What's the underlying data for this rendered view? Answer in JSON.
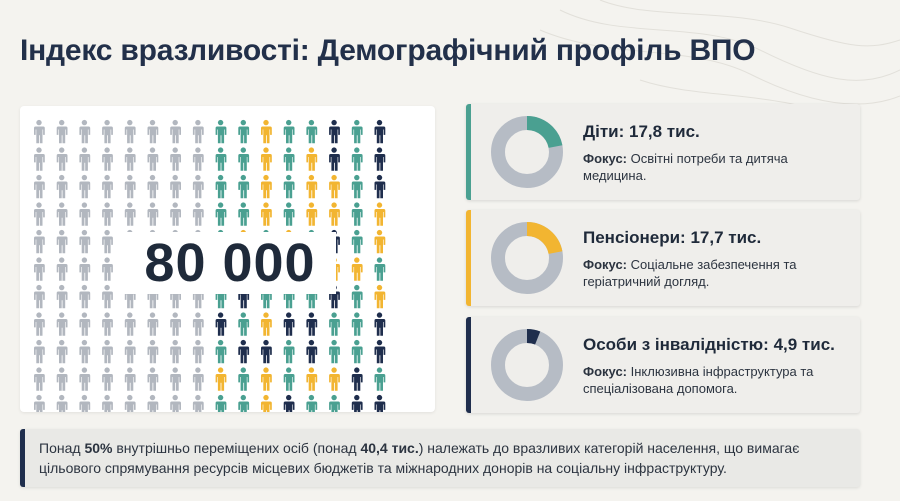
{
  "title": "Індекс вразливості: Демографічний профіль ВПО",
  "infographic": {
    "big_number": "80 000",
    "icon_name": "person-icon",
    "colors": {
      "grey": "#b2b7bf",
      "teal": "#4aa091",
      "yellow": "#f2b531",
      "navy": "#1f2e4d"
    },
    "rows": [
      "GGGGGGGGTTYTTNTN",
      "GGGGGGGGTTYTYNTN",
      "GGGGGGGGTTYTYYTN",
      "GGGGGGGGTTYTYYTY",
      "GGGGGGGGTYTYTNTY",
      "GGGGGGGGTNTTNYYT",
      "GGGGGGGGTNTTTNTY",
      "GGGGGGGGNTYNNTTN",
      "GGGGGGGGTNNTNTTN",
      "GGGGGGGGYTYTYYNT",
      "GGGGGGGGTTYNTTNN"
    ]
  },
  "cards": [
    {
      "title": "Діти: 17,8 тис.",
      "focus_label": "Фокус:",
      "focus_text": "Освітні потреби та дитяча медицина.",
      "accent": "#4aa091",
      "share": 0.22
    },
    {
      "title": "Пенсіонери: 17,7 тис.",
      "focus_label": "Фокус:",
      "focus_text": "Соціальне забезпечення та геріатричний догляд.",
      "accent": "#f2b531",
      "share": 0.22
    },
    {
      "title": "Особи з інвалідністю: 4,9 тис.",
      "focus_label": "Фокус:",
      "focus_text": "Інклюзивна інфраструктура та спеціалізована допомога.",
      "accent": "#1f2e4d",
      "share": 0.06
    }
  ],
  "footer": {
    "t1": "Понад ",
    "b1": "50%",
    "t2": " внутрішньо переміщених осіб (понад ",
    "b2": "40,4 тис.",
    "t3": ") належать до вразливих категорій населення, що вимагає цільового спрямування ресурсів місцевих бюджетів та міжнародних донорів на соціальну інфраструктуру.",
    "accent": "#1f2e4d"
  },
  "donut_track_color": "#b6bcc5"
}
